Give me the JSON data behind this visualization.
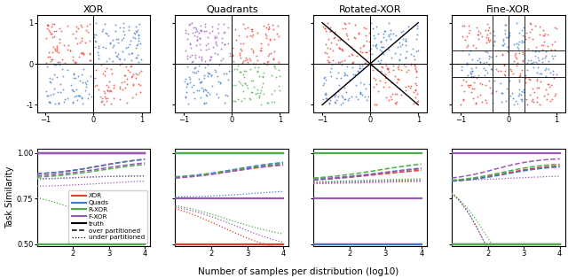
{
  "titles": [
    "XOR",
    "Quadrants",
    "Rotated-XOR",
    "Fine-XOR"
  ],
  "line_colors": {
    "XOR": "#e8392a",
    "Quads": "#3b78c8",
    "R-XOR": "#4aad4a",
    "F-XOR": "#9b59b6"
  },
  "n_scatter": 300,
  "random_seed": 42,
  "ylim_line": [
    0.49,
    1.02
  ],
  "yticks_line": [
    0.5,
    0.75,
    1.0
  ],
  "xlim_line": [
    1.0,
    4.15
  ],
  "xticks_line": [
    2,
    3,
    4
  ]
}
